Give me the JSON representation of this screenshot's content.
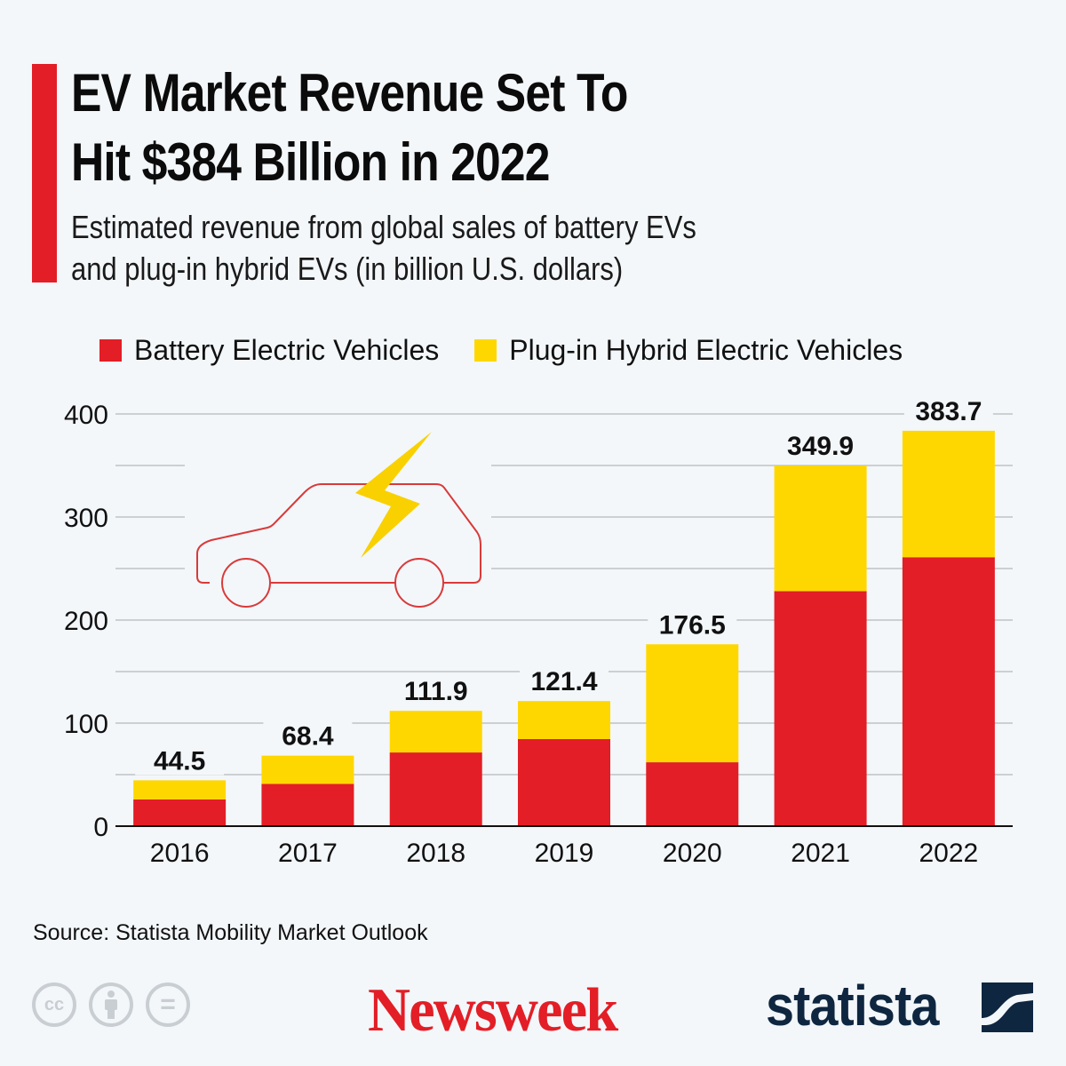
{
  "header": {
    "title_line1": "EV Market Revenue Set To",
    "title_line2": "Hit $384 Billion in 2022",
    "subtitle_line1": "Estimated revenue from global sales of battery EVs",
    "subtitle_line2": "and plug-in hybrid EVs (in billion U.S. dollars)"
  },
  "colors": {
    "accent": "#e31e26",
    "bev": "#e31e26",
    "phev": "#ffd700",
    "grid": "#b5b8bb",
    "background": "#f3f7fa",
    "statista_navy": "#0f2640"
  },
  "chart_data": {
    "type": "bar",
    "stacked": true,
    "title": "EV Market Revenue Set To Hit $384 Billion in 2022",
    "subtitle": "Estimated revenue from global sales of battery EVs and plug-in hybrid EVs (in billion U.S. dollars)",
    "categories": [
      "2016",
      "2017",
      "2018",
      "2019",
      "2020",
      "2021",
      "2022"
    ],
    "series": [
      {
        "name": "Battery Electric Vehicles",
        "color": "#e31e26",
        "values": [
          26.0,
          41.0,
          71.5,
          84.5,
          62.0,
          228.0,
          261.0
        ]
      },
      {
        "name": "Plug-in Hybrid Electric Vehicles",
        "color": "#ffd700",
        "values": [
          18.5,
          27.4,
          40.4,
          36.9,
          114.5,
          121.9,
          122.7
        ]
      }
    ],
    "totals": [
      44.5,
      68.4,
      111.9,
      121.4,
      176.5,
      349.9,
      383.7
    ],
    "total_labels": [
      "44.5",
      "68.4",
      "111.9",
      "121.4",
      "176.5",
      "349.9",
      "383.7"
    ],
    "xlabel": "",
    "ylabel": "",
    "ylim": [
      0,
      400
    ],
    "yticks": [
      0,
      100,
      200,
      300,
      400
    ],
    "ytick_labels": [
      "0",
      "100",
      "200",
      "300",
      "400"
    ],
    "grid": true,
    "grid_step": 50,
    "legend_position": "top-left"
  },
  "legend": {
    "bev_label": "Battery Electric Vehicles",
    "phev_label": "Plug-in Hybrid Electric Vehicles"
  },
  "illustration": {
    "icons": [
      "car-outline-icon",
      "lightning-bolt-icon"
    ]
  },
  "footer": {
    "source": "Source: Statista Mobility Market Outlook",
    "license_icons": [
      "creative-commons-icon",
      "attribution-icon",
      "no-derivatives-icon"
    ],
    "cc_label": "cc",
    "nd_label": "=",
    "newsweek_logo": "Newsweek",
    "statista_logo": "statista"
  }
}
